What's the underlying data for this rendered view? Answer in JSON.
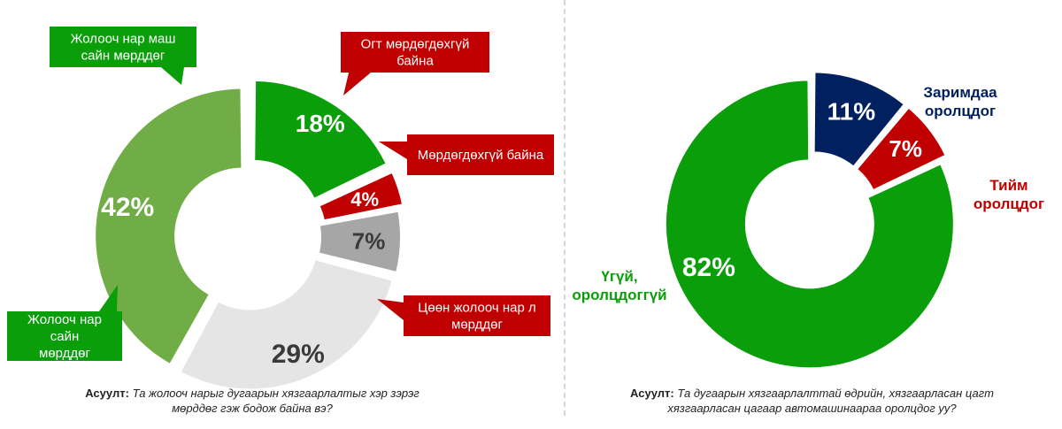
{
  "chart_data": [
    {
      "type": "pie",
      "categories": [
        "Жолооч нар маш сайн мөрддөг",
        "Огт мөрдөгдөхгүй байна",
        "Мөрдөгдөхгүй байна",
        "Цөөн жолооч нар л мөрддөг",
        "Жолооч нар сайн мөрддөг"
      ],
      "values": [
        18,
        4,
        7,
        29,
        42
      ],
      "value_labels": [
        "18%",
        "4%",
        "7%",
        "29%",
        "42%"
      ],
      "colors": [
        "#0a9e0a",
        "#c00000",
        "#a6a6a6",
        "#e5e5e5",
        "#70ad47"
      ],
      "value_label_colors": [
        "#ffffff",
        "#ffffff",
        "#3a3a3a",
        "#3a3a3a",
        "#ffffff"
      ],
      "callout_colors": [
        "#0a9e0a",
        "#c00000",
        "#c00000",
        "#c00000",
        "#0a9e0a"
      ],
      "question_label": "Асуулт",
      "question_text": "Та жолооч нарыг дугаарын хязгаарлалтыг хэр зэрэг мөрддөг гэж бодож байна вэ?"
    },
    {
      "type": "pie",
      "categories": [
        "Заримдаа оролцдог",
        "Тийм оролцдог",
        "Үгүй, оролцдоггүй"
      ],
      "values": [
        11,
        7,
        82
      ],
      "value_labels": [
        "11%",
        "7%",
        "82%"
      ],
      "colors": [
        "#002060",
        "#c00000",
        "#0a9e0a"
      ],
      "category_label_colors": [
        "#002060",
        "#c00000",
        "#0a9e0a"
      ],
      "question_label": "Асуулт",
      "question_text": "Та дугаарын хязгаарлалттай өдрийн, хязгаарласан цагт хязгаарласан цагаар автомашинаараа оролцдог уу?"
    }
  ]
}
